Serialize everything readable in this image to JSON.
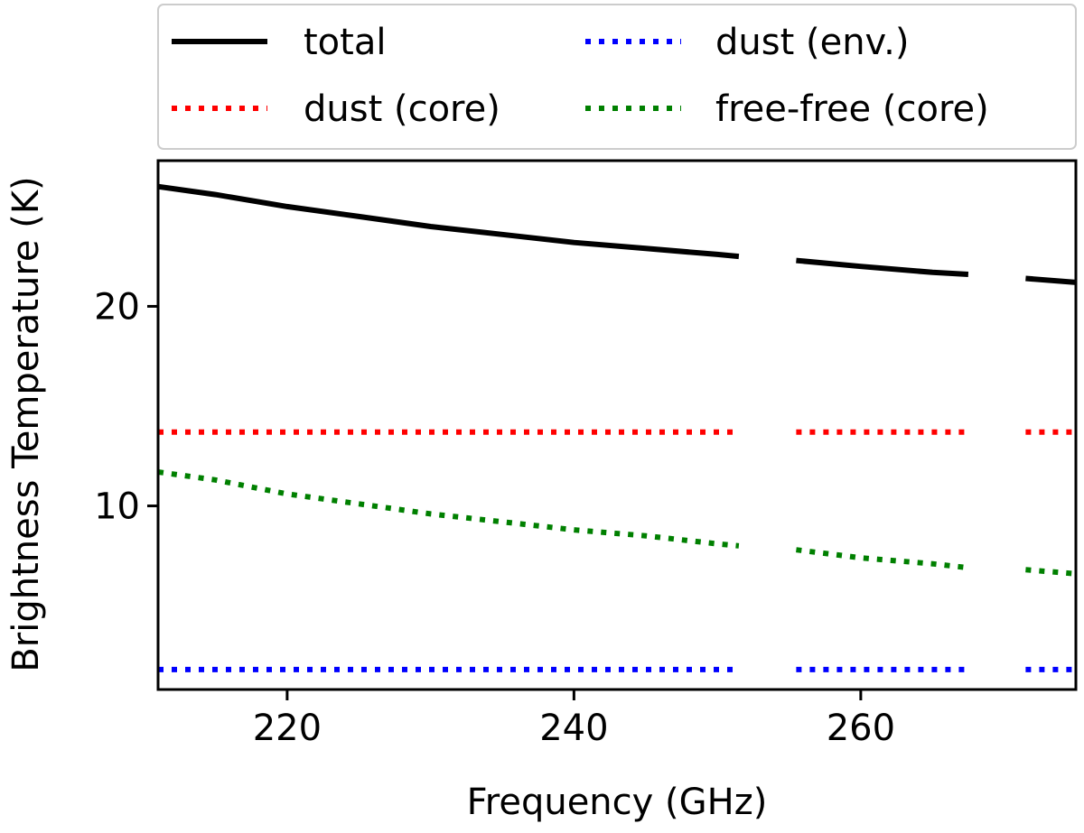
{
  "chart_data": {
    "type": "line",
    "title": "",
    "xlabel": "Frequency (GHz)",
    "ylabel": "Brightness Temperature (K)",
    "xlim": [
      211,
      275
    ],
    "ylim": [
      0.8,
      27.3
    ],
    "xticks": [
      220,
      240,
      260
    ],
    "yticks": [
      10,
      20
    ],
    "grid": false,
    "legend_position": "top (above plot, 2 columns)",
    "segments": [
      [
        211,
        251.5
      ],
      [
        255.5,
        267.5
      ],
      [
        271.5,
        275
      ]
    ],
    "series": [
      {
        "name": "total",
        "color": "#000000",
        "style": "solid",
        "x": [
          211,
          215,
          220,
          225,
          230,
          235,
          240,
          245,
          250,
          251.5,
          255.5,
          260,
          265,
          267.5,
          271.5,
          275
        ],
        "y": [
          26.0,
          25.6,
          25.0,
          24.5,
          24.0,
          23.6,
          23.2,
          22.9,
          22.6,
          22.5,
          22.3,
          22.0,
          21.7,
          21.6,
          21.4,
          21.2
        ]
      },
      {
        "name": "dust (env.)",
        "color": "#0000ff",
        "style": "dotted",
        "x": [
          211,
          251.5,
          255.5,
          267.5,
          271.5,
          275
        ],
        "y": [
          1.8,
          1.8,
          1.8,
          1.8,
          1.8,
          1.8
        ]
      },
      {
        "name": "dust (core)",
        "color": "#ff0000",
        "style": "dotted",
        "x": [
          211,
          251.5,
          255.5,
          267.5,
          271.5,
          275
        ],
        "y": [
          13.7,
          13.7,
          13.7,
          13.7,
          13.7,
          13.7
        ]
      },
      {
        "name": "free-free (core)",
        "color": "#008000",
        "style": "dotted",
        "x": [
          211,
          215,
          220,
          225,
          230,
          235,
          240,
          245,
          250,
          251.5,
          255.5,
          260,
          265,
          267.5,
          271.5,
          275
        ],
        "y": [
          11.7,
          11.3,
          10.6,
          10.1,
          9.6,
          9.2,
          8.8,
          8.5,
          8.1,
          8.0,
          7.8,
          7.4,
          7.1,
          6.9,
          6.8,
          6.6
        ]
      }
    ]
  }
}
